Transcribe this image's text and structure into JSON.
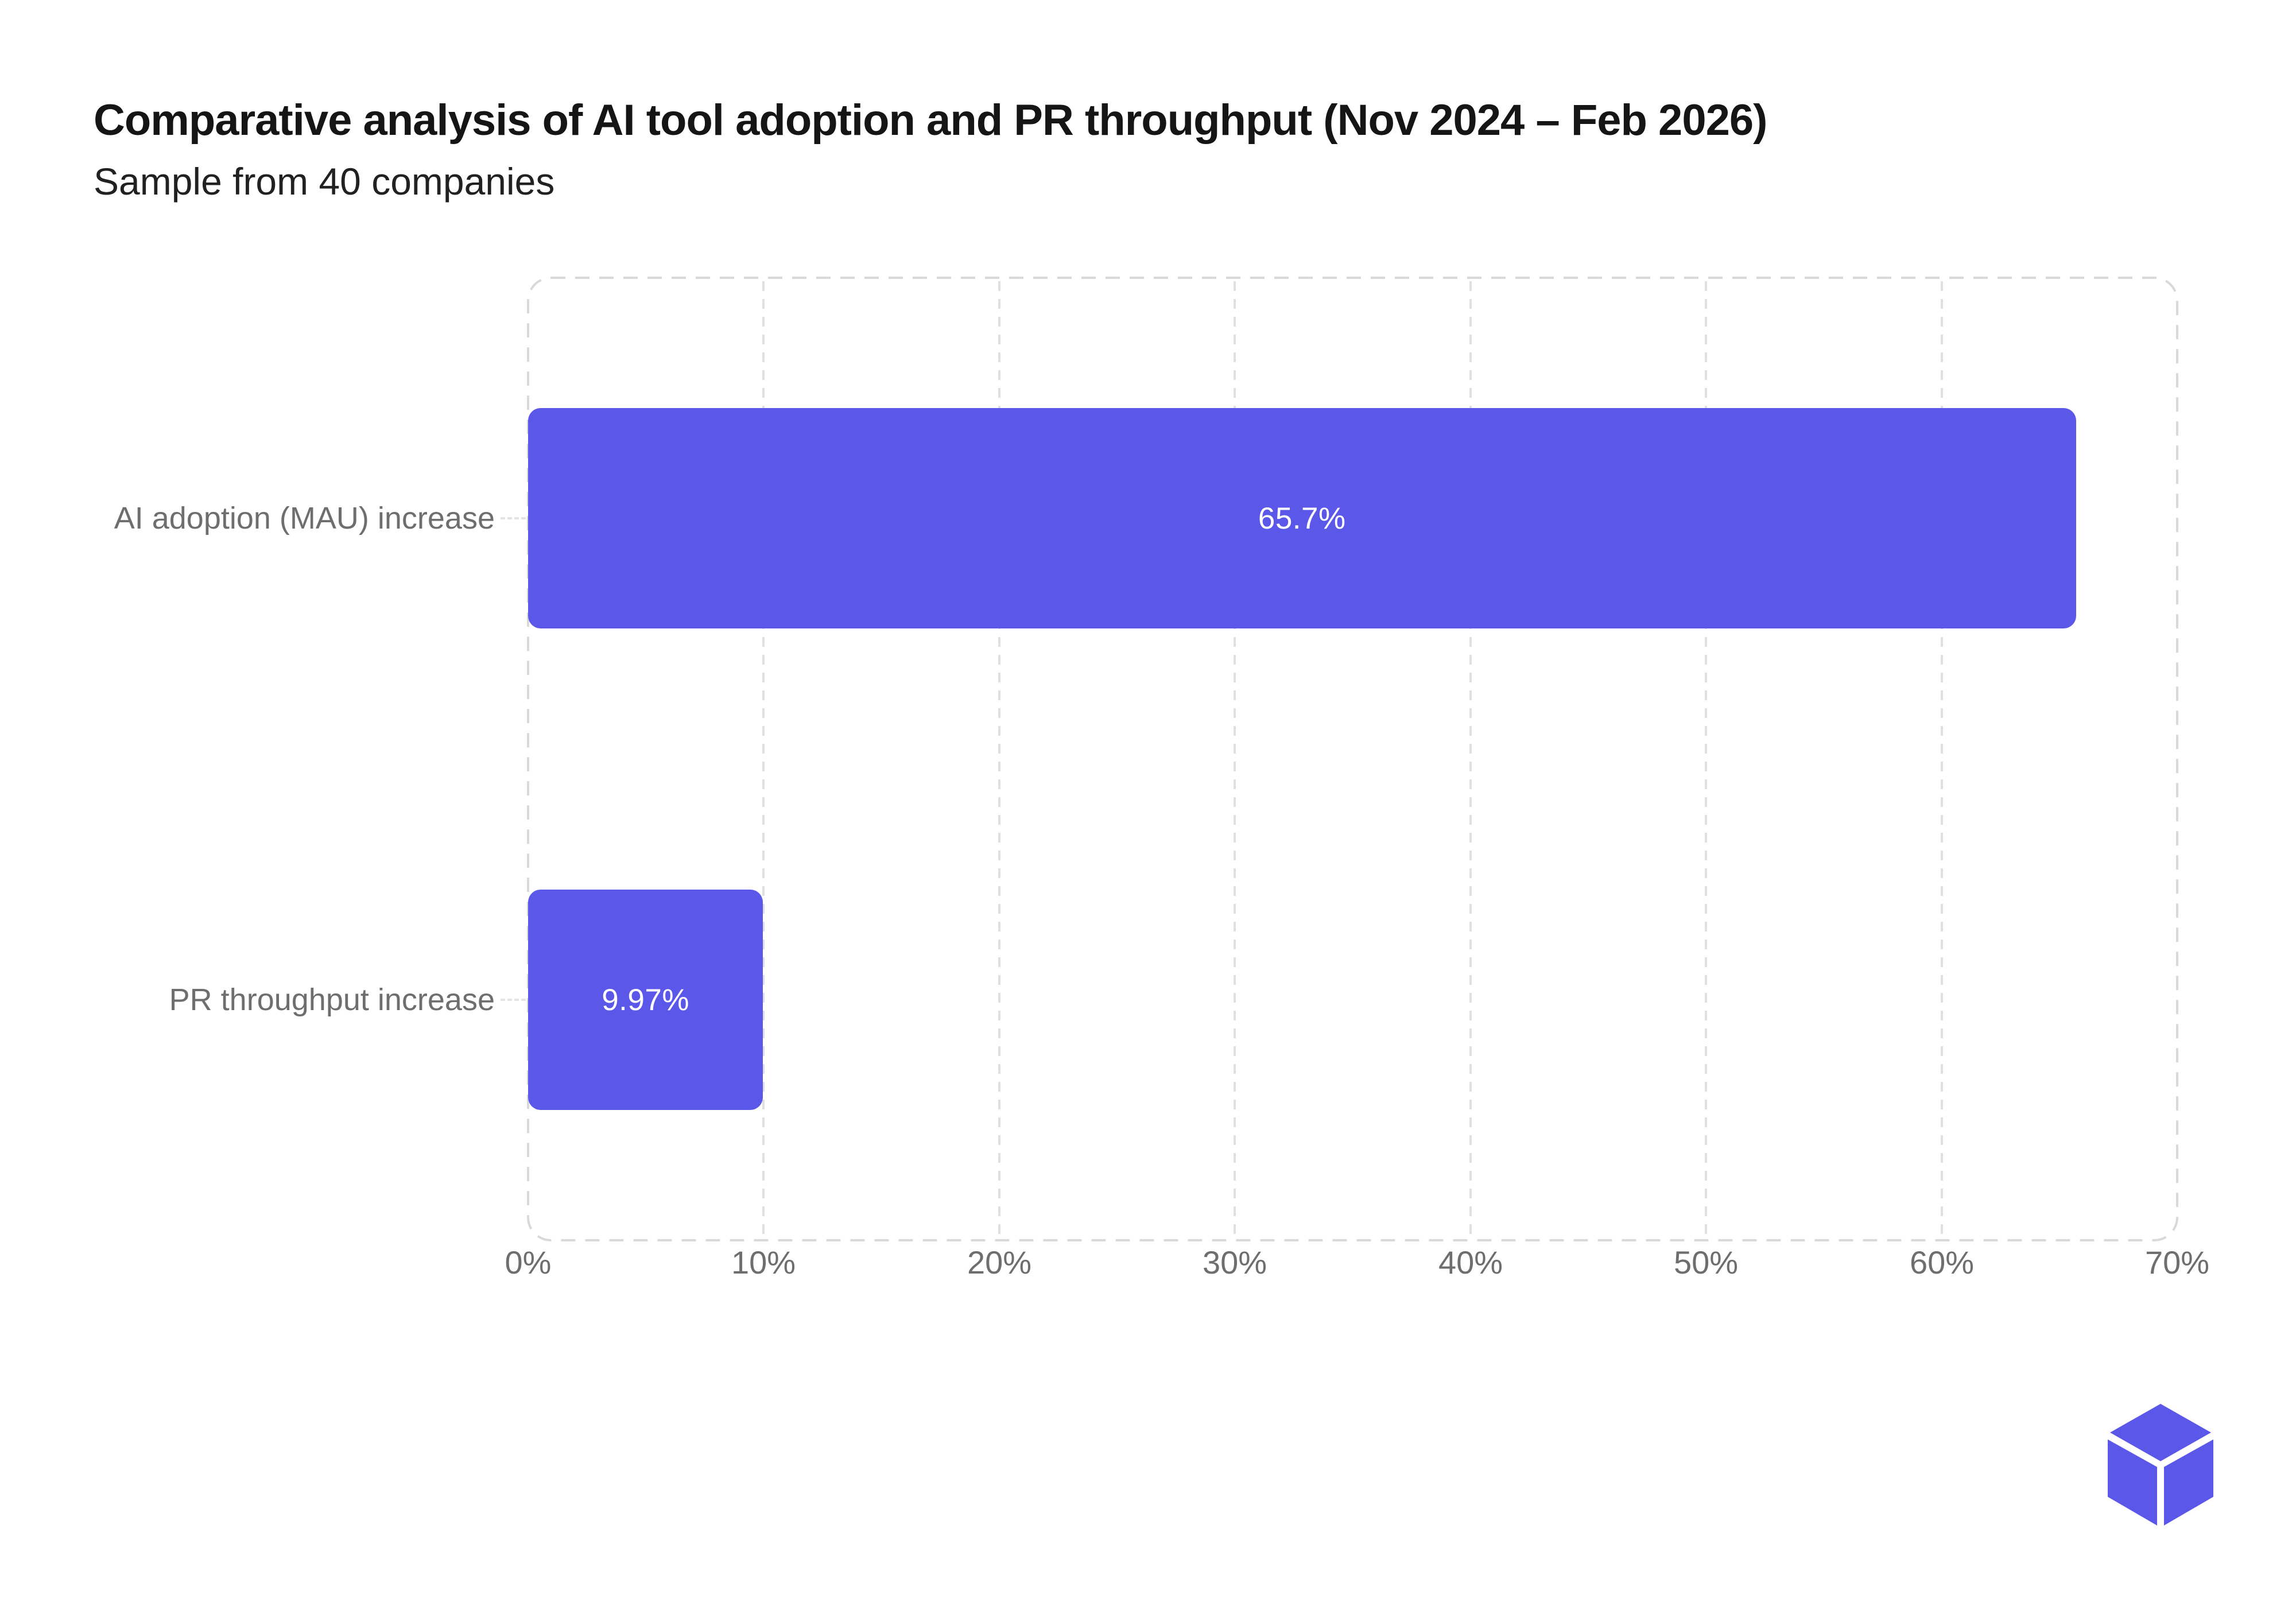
{
  "header": {
    "title": "Comparative analysis of AI tool adoption and PR throughput (Nov 2024 – Feb 2026)",
    "subtitle": "Sample from 40 companies"
  },
  "chart_data": {
    "type": "bar",
    "orientation": "horizontal",
    "title": "Comparative analysis of AI tool adoption and PR throughput (Nov 2024 – Feb 2026)",
    "subtitle": "Sample from 40 companies",
    "categories": [
      "AI adoption (MAU) increase",
      "PR throughput increase"
    ],
    "values": [
      65.7,
      9.97
    ],
    "value_labels": [
      "65.7%",
      "9.97%"
    ],
    "xlabel": "",
    "ylabel": "",
    "xlim": [
      0,
      70
    ],
    "x_tick_step": 10,
    "x_ticks": [
      "0%",
      "10%",
      "20%",
      "30%",
      "40%",
      "50%",
      "60%",
      "70%"
    ],
    "grid": "vertical dashed gridlines, dashed rounded plot border",
    "legend_position": "none"
  },
  "colors": {
    "bar": "#5B57E8",
    "bar_value_text": "#ffffff",
    "title_text": "#151515",
    "subtitle_text": "#212121",
    "axis_text": "#6e6e6e",
    "grid_line": "#e0e0e0",
    "plot_border": "#d9d9d9",
    "background": "#ffffff",
    "logo": "#5B57E8"
  },
  "logo": {
    "name": "cube-logo"
  }
}
